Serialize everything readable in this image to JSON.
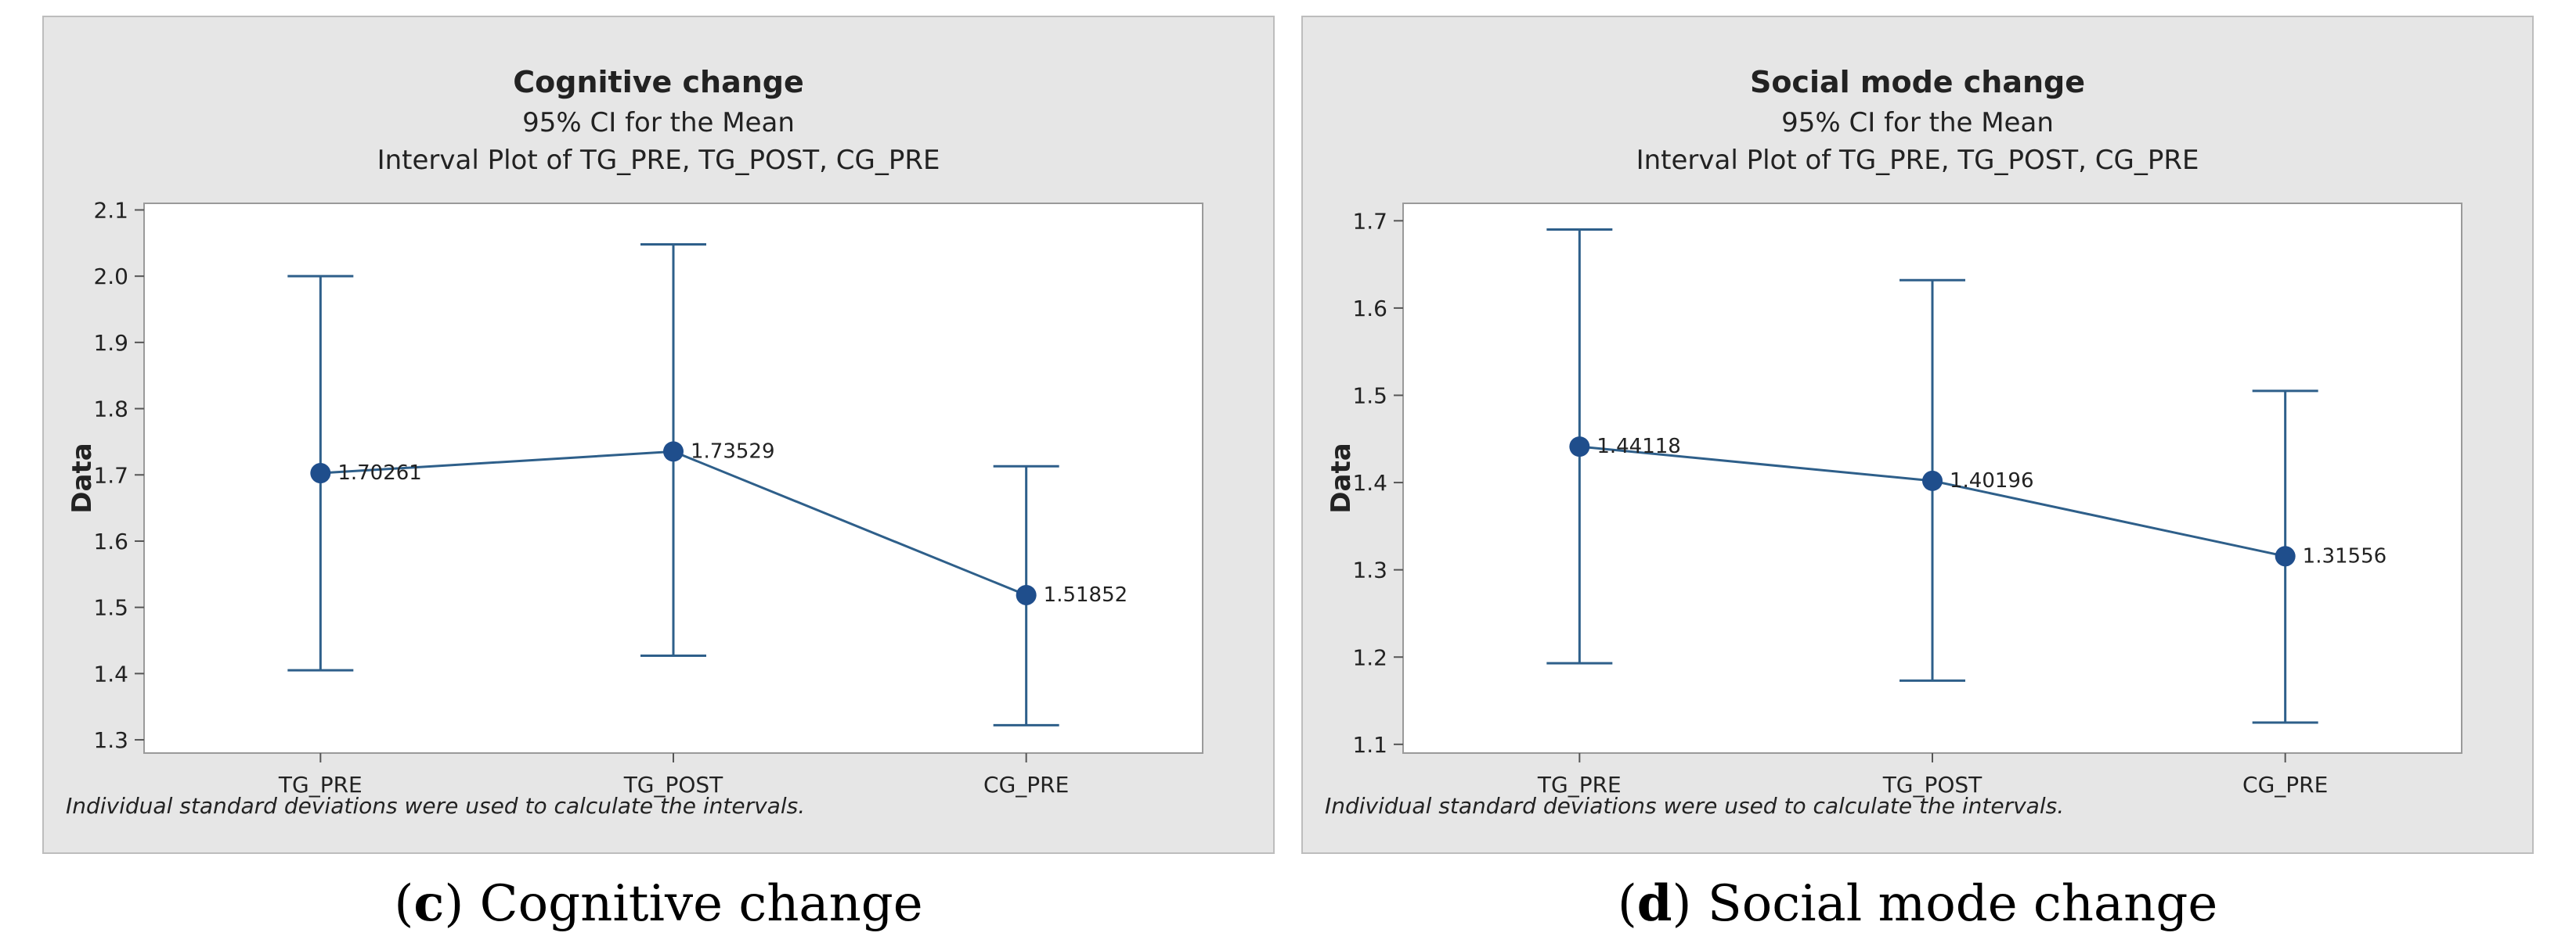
{
  "chart_data": [
    {
      "type": "interval",
      "title": "Cognitive change",
      "subtitle1": "95% CI for the Mean",
      "subtitle2": "Interval Plot of TG_PRE, TG_POST, CG_PRE",
      "ylabel": "Data",
      "categories": [
        "TG_PRE",
        "TG_POST",
        "CG_PRE"
      ],
      "means": [
        1.70261,
        1.73529,
        1.51852
      ],
      "mean_labels": [
        "1.70261",
        "1.73529",
        "1.51852"
      ],
      "lower": [
        1.405,
        1.427,
        1.322
      ],
      "upper": [
        2.0,
        2.048,
        1.713
      ],
      "ylim": [
        1.28,
        2.11
      ],
      "yticks": [
        1.3,
        1.4,
        1.5,
        1.6,
        1.7,
        1.8,
        1.9,
        2.0,
        2.1
      ],
      "ytick_labels": [
        "1.3",
        "1.4",
        "1.5",
        "1.6",
        "1.7",
        "1.8",
        "1.9",
        "2.0",
        "2.1"
      ],
      "footnote": "Individual standard deviations were used to calculate the intervals.",
      "caption_letter": "c",
      "caption_text": " Cognitive change"
    },
    {
      "type": "interval",
      "title": "Social mode change",
      "subtitle1": "95% CI for the Mean",
      "subtitle2": "Interval Plot of TG_PRE, TG_POST, CG_PRE",
      "ylabel": "Data",
      "categories": [
        "TG_PRE",
        "TG_POST",
        "CG_PRE"
      ],
      "means": [
        1.44118,
        1.40196,
        1.31556
      ],
      "mean_labels": [
        "1.44118",
        "1.40196",
        "1.31556"
      ],
      "lower": [
        1.193,
        1.173,
        1.125
      ],
      "upper": [
        1.69,
        1.632,
        1.505
      ],
      "ylim": [
        1.09,
        1.72
      ],
      "yticks": [
        1.1,
        1.2,
        1.3,
        1.4,
        1.5,
        1.6,
        1.7
      ],
      "ytick_labels": [
        "1.1",
        "1.2",
        "1.3",
        "1.4",
        "1.5",
        "1.6",
        "1.7"
      ],
      "footnote": "Individual standard deviations were used to calculate the intervals.",
      "caption_letter": "d",
      "caption_text": " Social mode change"
    }
  ],
  "colors": {
    "panel_bg": "#e6e6e6",
    "panel_border": "#bdbdbd",
    "plot_bg": "#ffffff",
    "plot_border": "#9a9a9a",
    "series": "#2e5f8a",
    "marker": "#1f4e8c",
    "text": "#222222"
  }
}
